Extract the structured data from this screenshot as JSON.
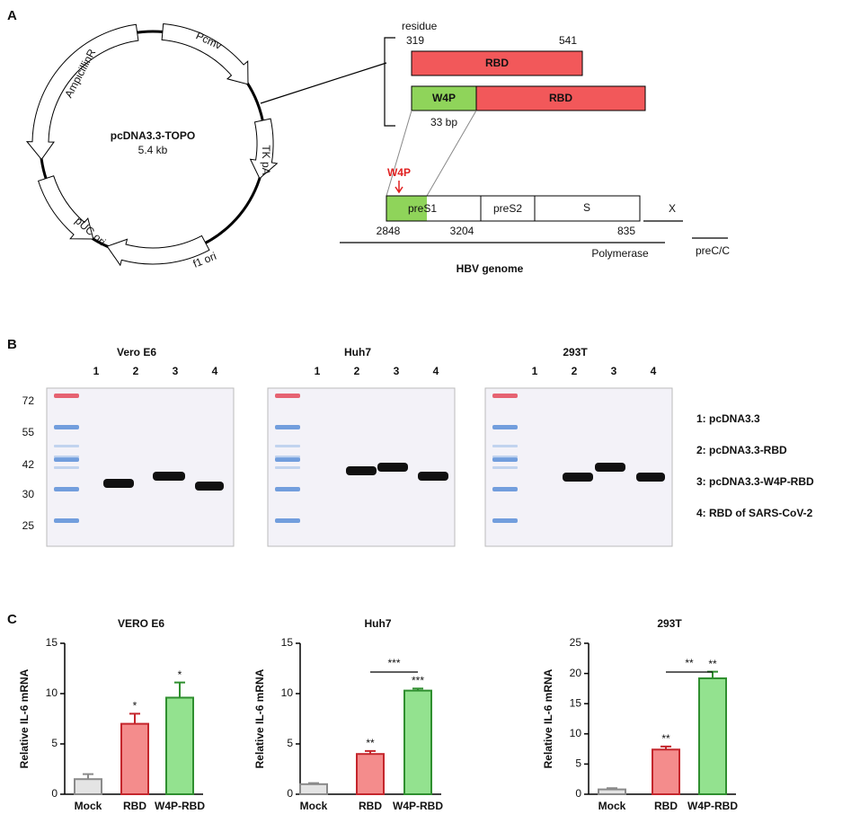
{
  "panels": [
    "A",
    "B",
    "C"
  ],
  "plasmid": {
    "name": "pcDNA3.3-TOPO",
    "size": "5.4 kb",
    "features": [
      "Pcmv",
      "AmpicillinR",
      "TK pA",
      "pUC ori",
      "f1 ori"
    ]
  },
  "construct": {
    "residue_label": "residue",
    "start": 319,
    "end": 541,
    "rbd": "RBD",
    "w4p": "W4P",
    "w4p_size": "33 bp"
  },
  "hbv": {
    "w4p_marker": "W4P",
    "regions": [
      "preS1",
      "preS2",
      "S",
      "X",
      "preC/C",
      "Polymerase"
    ],
    "positions": [
      2848,
      3204,
      835
    ],
    "genome": "HBV genome"
  },
  "western_blot": {
    "marker_labels": [
      72,
      55,
      42,
      30,
      25
    ],
    "blots": [
      {
        "title": "Vero E6",
        "lanes": [
          1,
          2,
          3,
          4
        ]
      },
      {
        "title": "Huh7",
        "lanes": [
          1,
          2,
          3,
          4
        ]
      },
      {
        "title": "293T",
        "lanes": [
          1,
          2,
          3,
          4
        ]
      }
    ],
    "legend": [
      "1: pcDNA3.3",
      "2: pcDNA3.3-RBD",
      "3: pcDNA3.3-W4P-RBD",
      "4: RBD of SARS-CoV-2"
    ]
  },
  "chart_data": [
    {
      "type": "bar",
      "title": "VERO E6",
      "ylabel": "Relative IL-6 mRNA",
      "categories": [
        "Mock",
        "RBD",
        "W4P-RBD"
      ],
      "values": [
        1.5,
        7.0,
        9.6
      ],
      "errors": [
        0.5,
        1.0,
        1.5
      ],
      "fill_colors": [
        "#e4e4e4",
        "#f48c8c",
        "#93e28f"
      ],
      "edge_colors": [
        "#8a8a8a",
        "#c4262c",
        "#2f8f2f"
      ],
      "significance": [
        null,
        "*",
        "*"
      ],
      "ylim": [
        0,
        15
      ],
      "yticks": [
        0,
        5,
        10,
        15
      ]
    },
    {
      "type": "bar",
      "title": "Huh7",
      "ylabel": "Relative IL-6 mRNA",
      "categories": [
        "Mock",
        "RBD",
        "W4P-RBD"
      ],
      "values": [
        1.0,
        4.0,
        10.3
      ],
      "errors": [
        0.1,
        0.3,
        0.2
      ],
      "fill_colors": [
        "#e4e4e4",
        "#f48c8c",
        "#93e28f"
      ],
      "edge_colors": [
        "#8a8a8a",
        "#c4262c",
        "#2f8f2f"
      ],
      "significance": [
        null,
        "**",
        "***"
      ],
      "bracket": "***",
      "ylim": [
        0,
        15
      ],
      "yticks": [
        0,
        5,
        10,
        15
      ]
    },
    {
      "type": "bar",
      "title": "293T",
      "ylabel": "Relative IL-6 mRNA",
      "categories": [
        "Mock",
        "RBD",
        "W4P-RBD"
      ],
      "values": [
        0.8,
        7.4,
        19.2
      ],
      "errors": [
        0.2,
        0.5,
        1.1
      ],
      "fill_colors": [
        "#e4e4e4",
        "#f48c8c",
        "#93e28f"
      ],
      "edge_colors": [
        "#8a8a8a",
        "#c4262c",
        "#2f8f2f"
      ],
      "significance": [
        null,
        "**",
        "**"
      ],
      "bracket": "**",
      "ylim": [
        0,
        25
      ],
      "yticks": [
        0,
        5,
        10,
        15,
        20,
        25
      ]
    }
  ]
}
